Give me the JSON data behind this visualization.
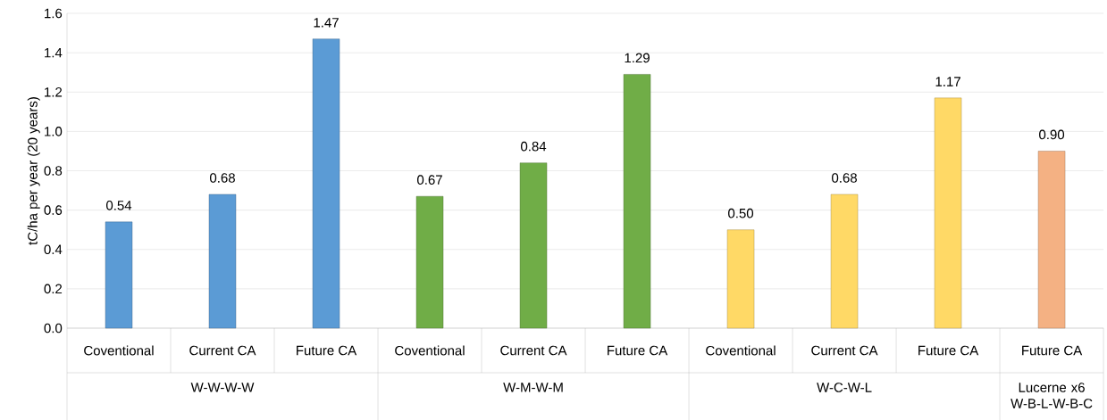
{
  "chart_data": {
    "type": "bar",
    "ylabel": "tC/ha per year (20 years)",
    "categories": [
      "Coventional",
      "Current CA",
      "Future CA",
      "Coventional",
      "Current CA",
      "Future CA",
      "Coventional",
      "Current CA",
      "Future CA",
      "Future CA"
    ],
    "values": [
      0.54,
      0.68,
      1.47,
      0.67,
      0.84,
      1.29,
      0.5,
      0.68,
      1.17,
      0.9
    ],
    "colors": [
      "#5b9bd5",
      "#5b9bd5",
      "#5b9bd5",
      "#70ad47",
      "#70ad47",
      "#70ad47",
      "#ffd966",
      "#ffd966",
      "#ffd966",
      "#f4b183"
    ],
    "value_labels": [
      "0.54",
      "0.68",
      "1.47",
      "0.67",
      "0.84",
      "1.29",
      "0.50",
      "0.68",
      "1.17",
      "0.90"
    ],
    "ylim": [
      0,
      1.6
    ],
    "yticks": [
      {
        "value": 0,
        "label": "0.0"
      },
      {
        "value": 0.2,
        "label": "0.2"
      },
      {
        "value": 0.4,
        "label": "0.4"
      },
      {
        "value": 0.6,
        "label": "0.6"
      },
      {
        "value": 0.8,
        "label": "0.8"
      },
      {
        "value": 1.0,
        "label": "1.0"
      },
      {
        "value": 1.2,
        "label": "1.2"
      },
      {
        "value": 1.4,
        "label": "1.4"
      },
      {
        "value": 1.6,
        "label": "1.6"
      }
    ],
    "grid": "y",
    "annotations": [
      "W-W-W-W",
      "W-M-W-M",
      "W-C-W-L",
      "Lucerne x6 W-B-L-W-B-C"
    ]
  }
}
